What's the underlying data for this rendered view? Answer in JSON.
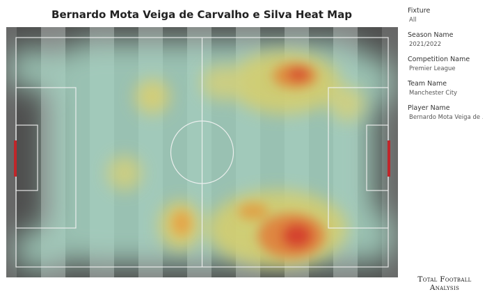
{
  "title": "Bernardo Mota Veiga de Carvalho e Silva Heat Map",
  "filters": [
    {
      "label": "Fixture",
      "value": "All"
    },
    {
      "label": "Season Name",
      "value": "2021/2022"
    },
    {
      "label": "Competition Name",
      "value": "Premier League"
    },
    {
      "label": "Team Name",
      "value": "Manchester City"
    },
    {
      "label": "Player Name",
      "value": "Bernardo Mota Veiga de .."
    }
  ],
  "brand": "Total Football Analysis",
  "colors": {
    "pitch_dark": "#4b4b4b",
    "stripe_light": "#9a9a9a",
    "goal_red": "#c0262a",
    "heat_low": "#9ecfbd",
    "heat_mid": "#f2c24a",
    "heat_high": "#d63c2c"
  }
}
